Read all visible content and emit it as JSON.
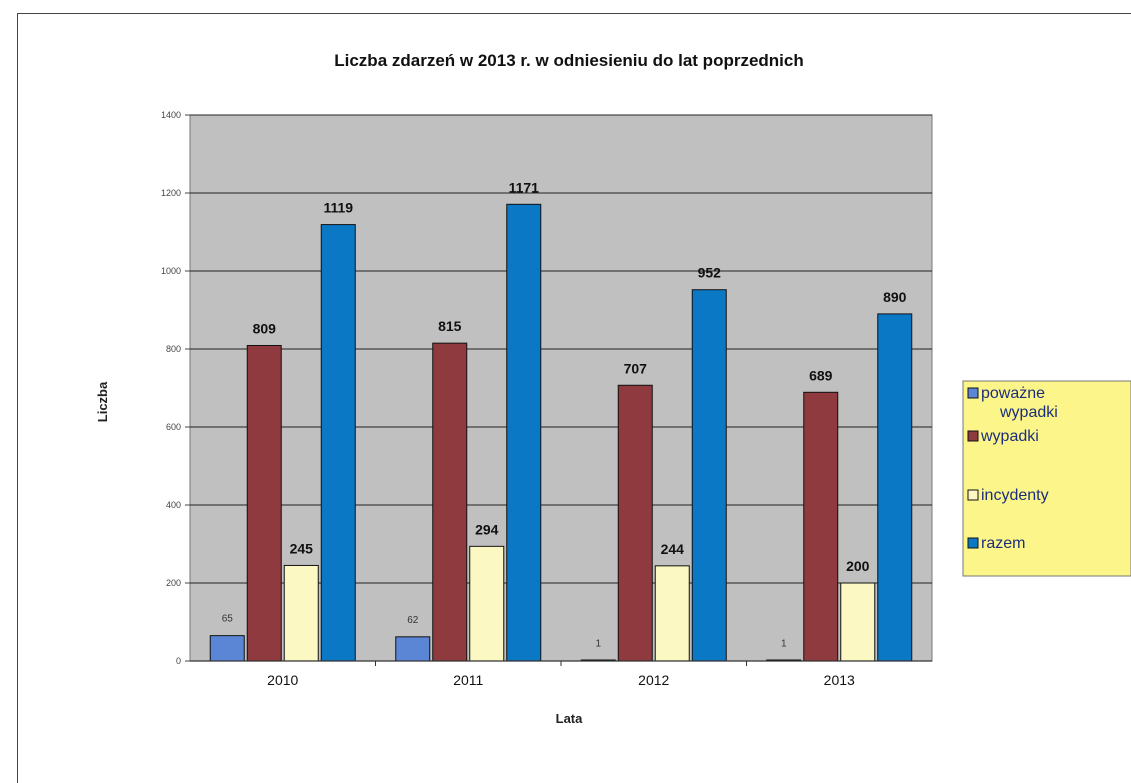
{
  "chart_data": {
    "type": "bar",
    "title": "Liczba zdarzeń w 2013 r. w odniesieniu do lat  poprzednich",
    "xlabel": "Lata",
    "ylabel": "Liczba",
    "categories": [
      "2010",
      "2011",
      "2012",
      "2013"
    ],
    "series": [
      {
        "name": "poważne wypadki",
        "values": [
          65,
          62,
          1,
          1
        ],
        "color": "#5b86d6"
      },
      {
        "name": "wypadki",
        "values": [
          809,
          815,
          707,
          689
        ],
        "color": "#8e3a3e"
      },
      {
        "name": "incydenty",
        "values": [
          245,
          294,
          244,
          200
        ],
        "color": "#fbf8c4"
      },
      {
        "name": "razem",
        "values": [
          1119,
          1171,
          952,
          890
        ],
        "color": "#0b78c6"
      }
    ],
    "ylim": [
      0,
      1400
    ],
    "yticks": [
      "0",
      "200",
      "400",
      "600",
      "800",
      "1000",
      "1200",
      "1400"
    ],
    "grid": true,
    "legend_position": "right",
    "plot_background": "#c0c0c0",
    "legend_background": "#fbf58a"
  }
}
